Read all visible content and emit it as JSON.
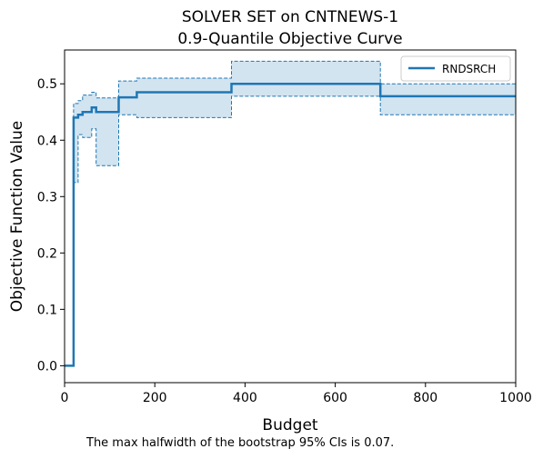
{
  "chart_data": {
    "type": "line",
    "title_line1": "SOLVER SET on CNTNEWS-1",
    "title_line2": "0.9-Quantile Objective Curve",
    "xlabel": "Budget",
    "ylabel": "Objective Function Value",
    "xlim": [
      0,
      1000
    ],
    "ylim": [
      -0.03,
      0.56
    ],
    "xticks": [
      0,
      200,
      400,
      600,
      800,
      1000
    ],
    "xtick_labels": [
      "0",
      "200",
      "400",
      "600",
      "800",
      "1000"
    ],
    "yticks": [
      0.0,
      0.1,
      0.2,
      0.3,
      0.4,
      0.5
    ],
    "ytick_labels": [
      "0.0",
      "0.1",
      "0.2",
      "0.3",
      "0.4",
      "0.5"
    ],
    "grid": false,
    "legend_position": "top-right",
    "series": [
      {
        "name": "RNDSRCH",
        "color": "#1f77b4",
        "step": "post",
        "x": [
          0,
          20,
          30,
          40,
          60,
          70,
          120,
          160,
          370,
          700,
          1000
        ],
        "y": [
          0.0,
          0.44,
          0.445,
          0.45,
          0.458,
          0.45,
          0.476,
          0.485,
          0.5,
          0.478,
          0.478
        ],
        "ci_lower": [
          0.0,
          0.325,
          0.41,
          0.405,
          0.42,
          0.355,
          0.445,
          0.44,
          0.478,
          0.445,
          0.445
        ],
        "ci_upper": [
          0.0,
          0.465,
          0.47,
          0.48,
          0.485,
          0.475,
          0.505,
          0.51,
          0.54,
          0.5,
          0.5
        ]
      }
    ]
  },
  "caption": "The max halfwidth of the bootstrap 95% CIs is 0.07."
}
